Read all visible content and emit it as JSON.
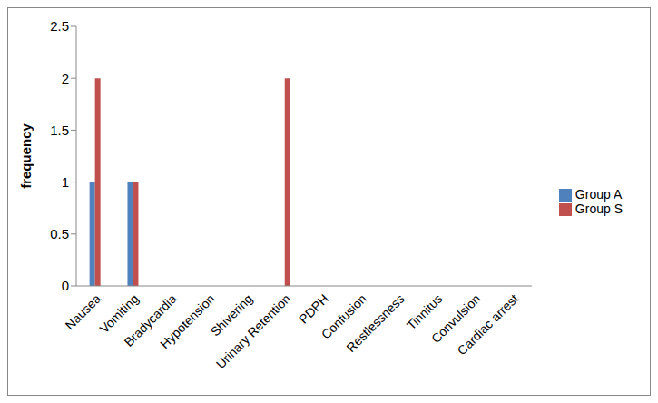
{
  "chart_data": {
    "type": "bar",
    "categories": [
      "Nausea",
      "Vomiting",
      "Bradycardia",
      "Hypotension",
      "Shivering",
      "Urinary Retention",
      "PDPH",
      "Confusion",
      "Restlessness",
      "Tinnitus",
      "Convulsion",
      "Cardiac arrest"
    ],
    "series": [
      {
        "name": "Group A",
        "color": "#4f81bd",
        "values": [
          1,
          1,
          0,
          0,
          0,
          0,
          0,
          0,
          0,
          0,
          0,
          0
        ]
      },
      {
        "name": "Group S",
        "color": "#c0504d",
        "values": [
          2,
          1,
          0,
          0,
          0,
          2,
          0,
          0,
          0,
          0,
          0,
          0
        ]
      }
    ],
    "y_label": "frequency",
    "ylim": [
      0,
      2.5
    ],
    "yticks": [
      0,
      0.5,
      1,
      1.5,
      2,
      2.5
    ],
    "grid": false,
    "legend": "right"
  }
}
